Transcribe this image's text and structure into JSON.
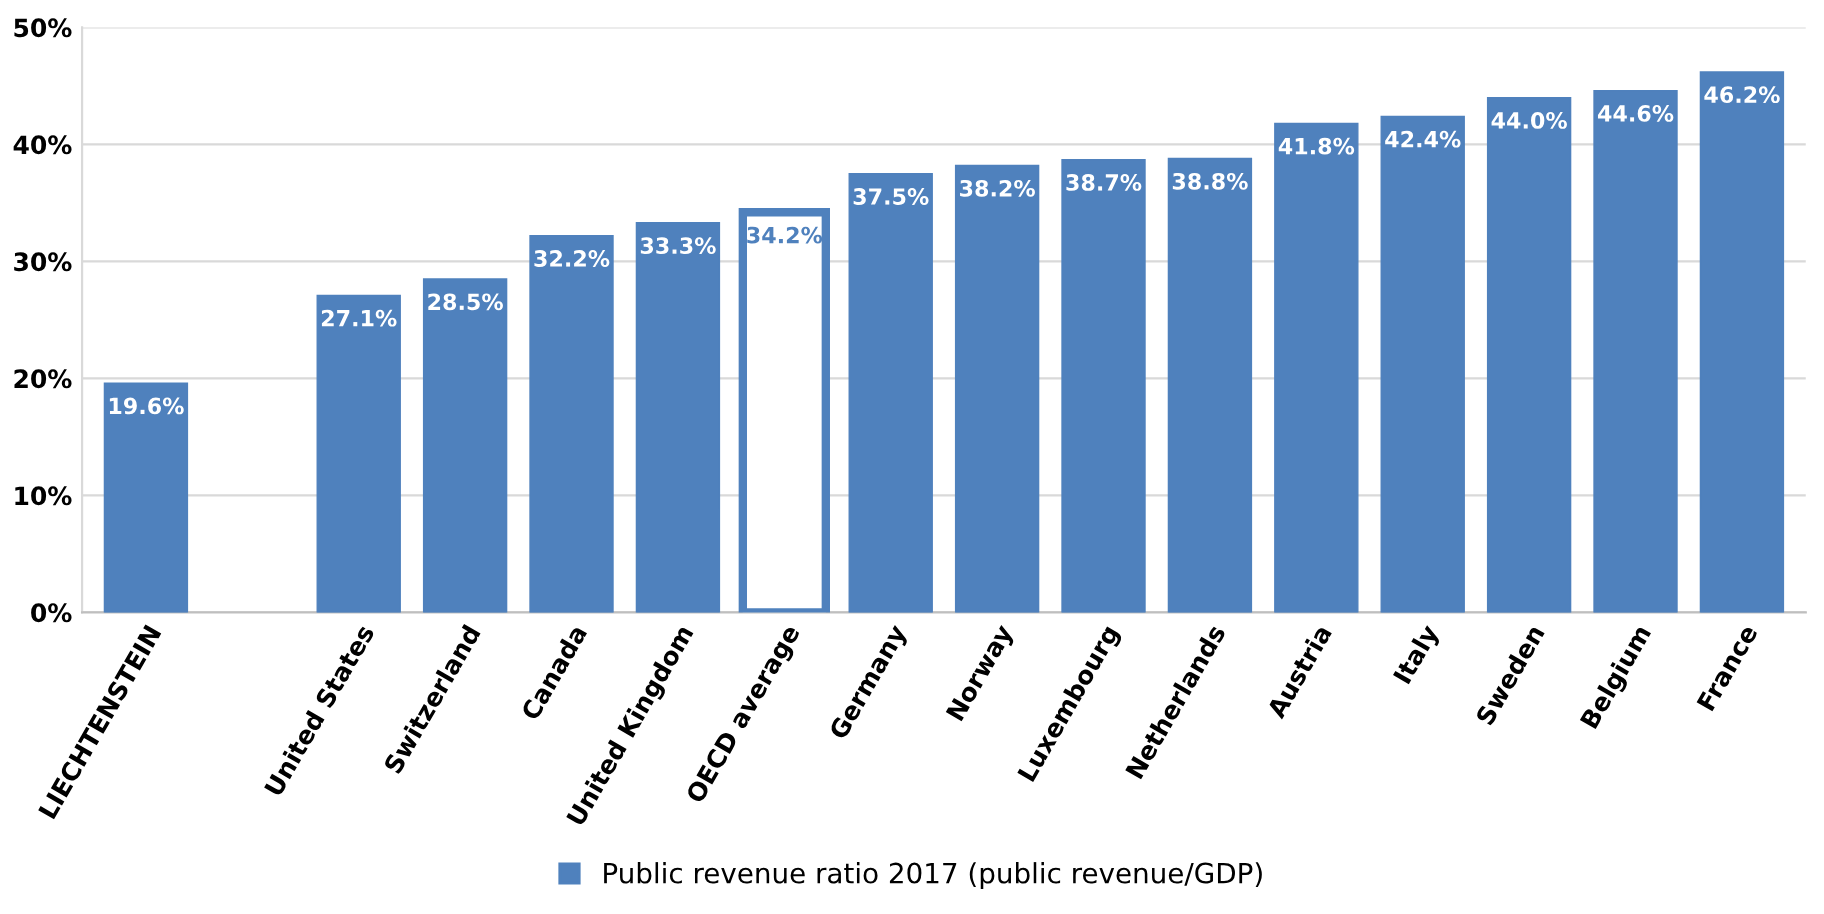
{
  "chart_data": {
    "type": "bar",
    "categories": [
      "LIECHTENSTEIN",
      null,
      "United States",
      "Switzerland",
      "Canada",
      "United Kingdom",
      "OECD average",
      "Germany",
      "Norway",
      "Luxembourg",
      "Netherlands",
      "Austria",
      "Italy",
      "Sweden",
      "Belgium",
      "France"
    ],
    "series": [
      {
        "name": "Public revenue ratio 2017 (public revenue/GDP)",
        "color": "#4f81bd",
        "colors": [
          "#4f81bd",
          null,
          "#4f81bd",
          "#4f81bd",
          "#4f81bd",
          "#4f81bd",
          "#ffffff",
          "#4f81bd",
          "#4f81bd",
          "#4f81bd",
          "#4f81bd",
          "#4f81bd",
          "#4f81bd",
          "#4f81bd",
          "#4f81bd",
          "#4f81bd"
        ],
        "values": [
          19.6,
          null,
          27.1,
          28.5,
          32.2,
          33.3,
          34.2,
          37.5,
          38.2,
          38.7,
          38.8,
          41.8,
          42.4,
          44.0,
          44.6,
          46.2
        ],
        "value_labels": [
          "19.6%",
          null,
          "27.1%",
          "28.5%",
          "32.2%",
          "33.3%",
          "34.2%",
          "37.5%",
          "38.2%",
          "38.7%",
          "38.8%",
          "41.8%",
          "42.4%",
          "44.0%",
          "44.6%",
          "46.2%"
        ]
      }
    ],
    "ylim": [
      0,
      50
    ],
    "yticks": [
      {
        "value": 0,
        "label": "0%"
      },
      {
        "value": 10,
        "label": "10%"
      },
      {
        "value": 20,
        "label": "20%"
      },
      {
        "value": 30,
        "label": "30%"
      },
      {
        "value": 40,
        "label": "40%"
      },
      {
        "value": 50,
        "label": "50%"
      }
    ],
    "grid": "y",
    "legend": "bottom"
  }
}
